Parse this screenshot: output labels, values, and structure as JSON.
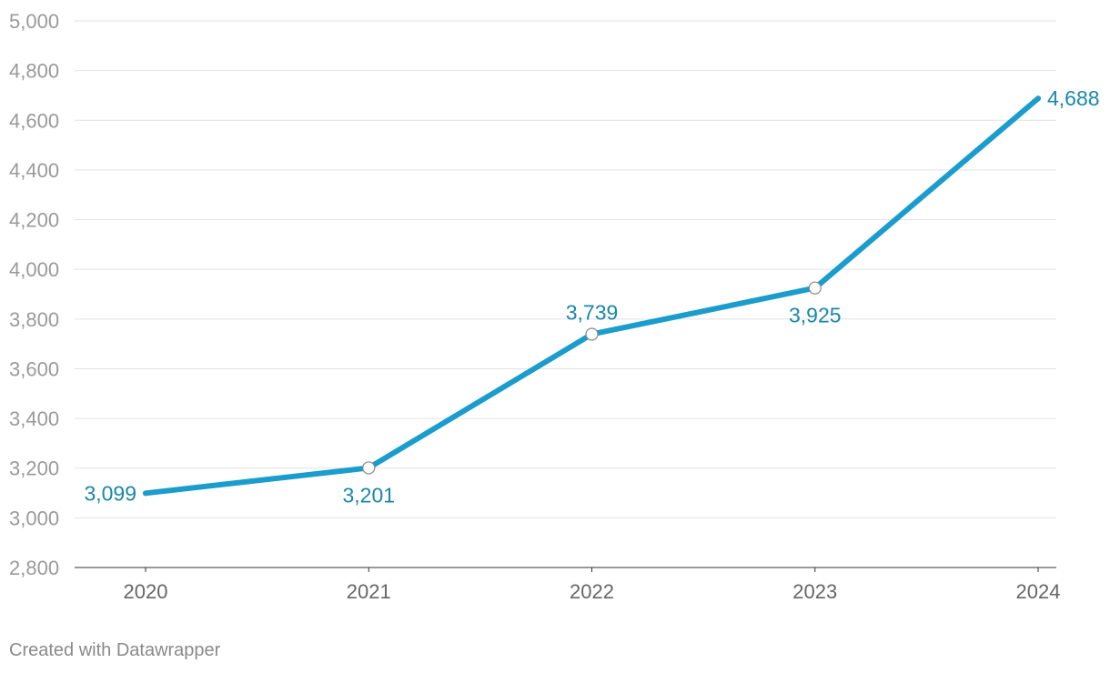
{
  "chart_data": {
    "type": "line",
    "title": "",
    "xlabel": "",
    "ylabel": "",
    "categories": [
      "2020",
      "2021",
      "2022",
      "2023",
      "2024"
    ],
    "series": [
      {
        "values": [
          3099,
          3201,
          3739,
          3925,
          4688
        ],
        "color": "#1a9ccc"
      }
    ],
    "data_labels": [
      "3,099",
      "3,201",
      "3,739",
      "3,925",
      "4,688"
    ],
    "data_label_color": "#1a87a8",
    "ylim": [
      2800,
      5000
    ],
    "y_ticks": [
      2800,
      3000,
      3200,
      3400,
      3600,
      3800,
      4000,
      4200,
      4400,
      4600,
      4800,
      5000
    ],
    "y_tick_labels": [
      "2,800",
      "3,000",
      "3,200",
      "3,400",
      "3,600",
      "3,800",
      "4,000",
      "4,200",
      "4,400",
      "4,600",
      "4,800",
      "5,000"
    ],
    "grid": true,
    "legend": "none",
    "point_markers": [
      "none",
      "circle",
      "circle",
      "circle",
      "none"
    ]
  },
  "footer": {
    "credit": "Created with Datawrapper"
  }
}
